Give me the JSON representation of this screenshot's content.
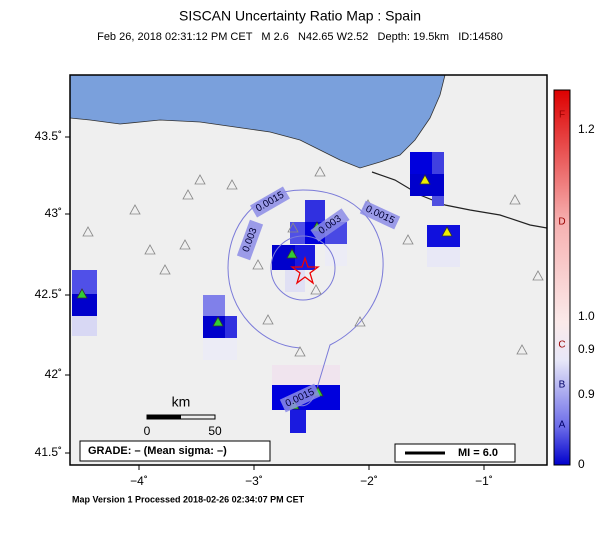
{
  "header": {
    "title": "SISCAN Uncertainty Ratio Map : Spain",
    "subtitle": "Feb 26, 2018 02:31:12 PM CET   M 2.6   N42.65 W2.52   Depth: 19.5km   ID:14580"
  },
  "map": {
    "x_ticks": [
      "−4˚",
      "−3˚",
      "−2˚",
      "−1˚"
    ],
    "y_ticks": [
      "43.5˚",
      "43˚",
      "42.5˚",
      "42˚",
      "41.5˚"
    ],
    "contour_labels": [
      "0.0015",
      "0.003",
      "0.003",
      "0.0015",
      "0.0015"
    ],
    "scale": {
      "unit": "km",
      "start": "0",
      "end": "50"
    },
    "grade": "GRADE: – (Mean sigma: –)",
    "mi": "MI = 6.0"
  },
  "colorbar": {
    "letters": [
      "F",
      "D",
      "C",
      "B",
      "A"
    ],
    "numbers": [
      "1.2",
      "1.0",
      "0.9",
      "0.9",
      "0"
    ]
  },
  "footer": "Map Version 1 Processed 2018-02-26 02:34:07 PM CET"
}
